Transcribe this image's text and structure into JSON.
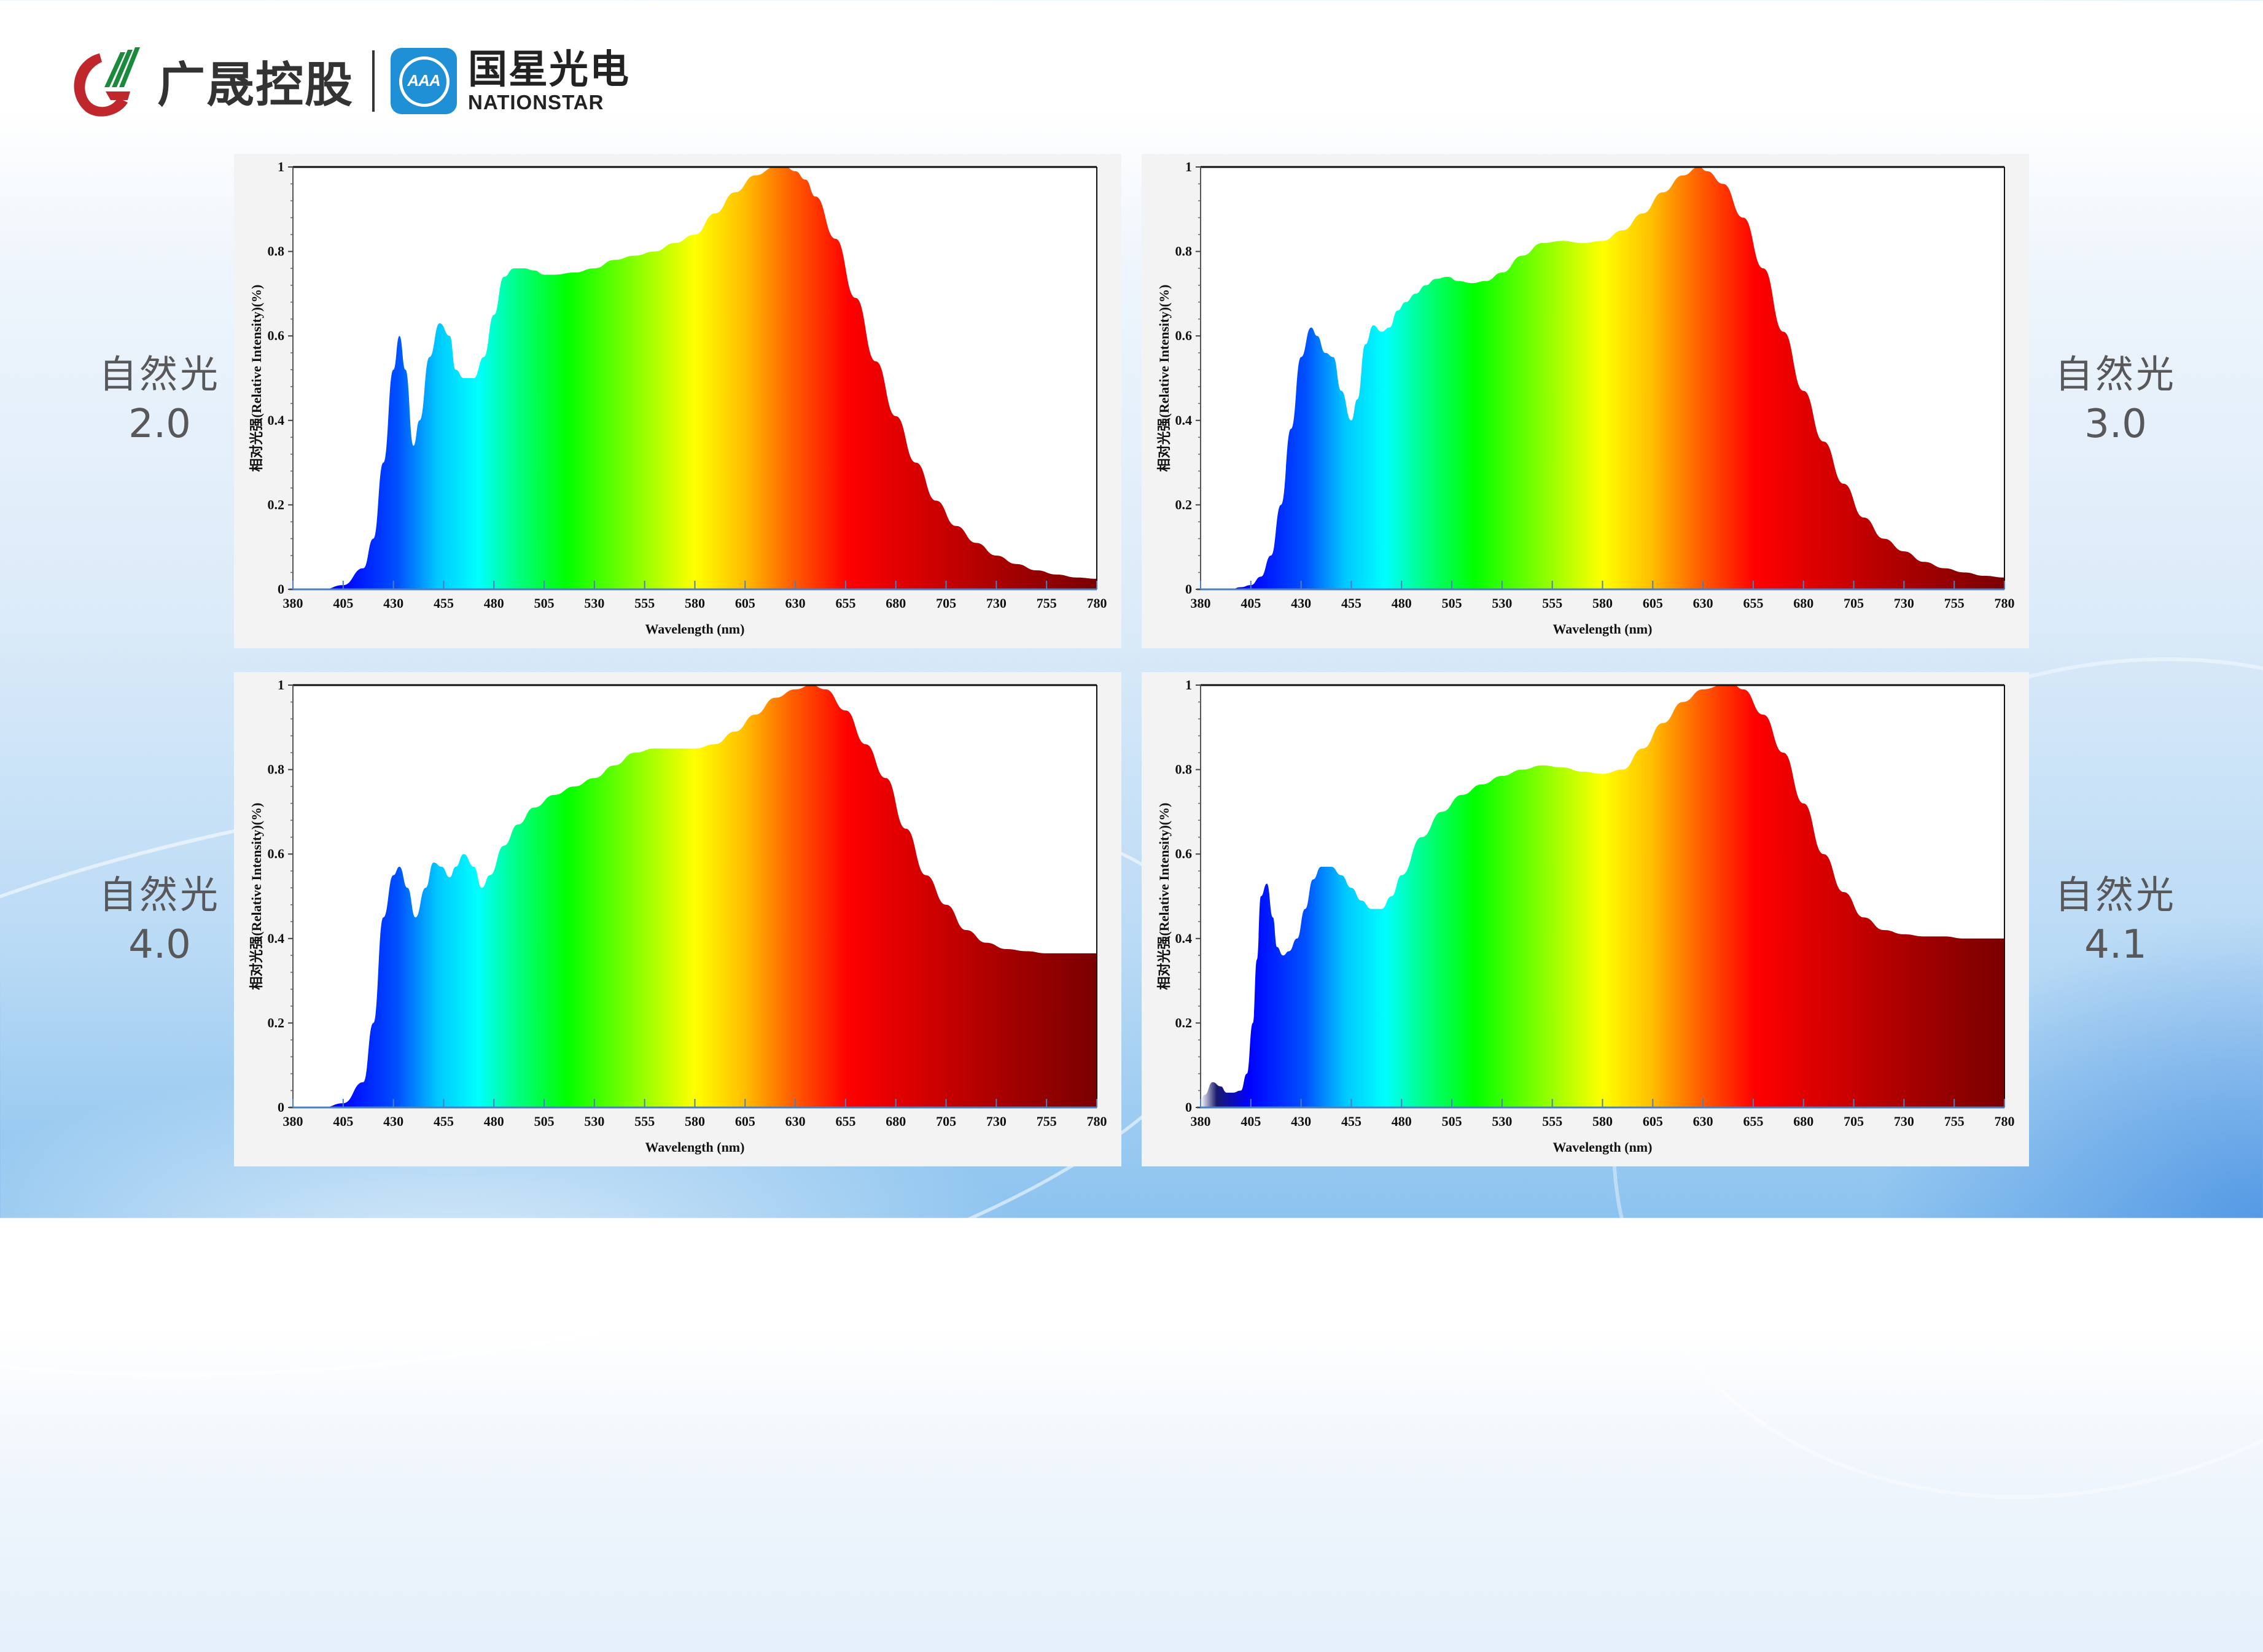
{
  "header": {
    "brand_left": "广晟控股",
    "brand_right_cn": "国星光电",
    "brand_right_en": "NATIONSTAR",
    "brand_right_icon_text": "AAA",
    "brand_right_color": "#1f8fd6"
  },
  "labels": [
    {
      "title": "自然光",
      "version": "2.0"
    },
    {
      "title": "自然光",
      "version": "3.0"
    },
    {
      "title": "自然光",
      "version": "4.0"
    },
    {
      "title": "自然光",
      "version": "4.1"
    }
  ],
  "axis": {
    "ylabel": "相对光强(Relative Intensity)(%)",
    "xlabel": "Wavelength (nm)",
    "yticks": [
      "0",
      "0.2",
      "0.4",
      "0.6",
      "0.8",
      "1"
    ],
    "xticks": [
      "380",
      "405",
      "430",
      "455",
      "480",
      "505",
      "530",
      "555",
      "580",
      "605",
      "630",
      "655",
      "680",
      "705",
      "730",
      "755",
      "780"
    ]
  },
  "chart_data": [
    {
      "type": "area",
      "title": "自然光 2.0",
      "xlabel": "Wavelength (nm)",
      "ylabel": "相对光强(Relative Intensity)(%)",
      "xlim": [
        380,
        780
      ],
      "ylim": [
        0,
        1
      ],
      "grid": false,
      "fill": "visible-spectrum gradient",
      "x": [
        380,
        395,
        405,
        415,
        420,
        425,
        430,
        433,
        436,
        440,
        443,
        448,
        453,
        458,
        461,
        465,
        470,
        475,
        480,
        485,
        490,
        495,
        500,
        505,
        510,
        520,
        530,
        540,
        550,
        560,
        570,
        580,
        590,
        600,
        610,
        620,
        625,
        630,
        635,
        640,
        650,
        660,
        670,
        680,
        690,
        700,
        710,
        720,
        730,
        740,
        750,
        760,
        770,
        780
      ],
      "values": [
        0.0,
        0.0,
        0.01,
        0.05,
        0.12,
        0.3,
        0.52,
        0.6,
        0.52,
        0.34,
        0.4,
        0.55,
        0.63,
        0.6,
        0.52,
        0.5,
        0.5,
        0.55,
        0.65,
        0.74,
        0.76,
        0.76,
        0.755,
        0.745,
        0.745,
        0.75,
        0.76,
        0.78,
        0.79,
        0.8,
        0.82,
        0.84,
        0.89,
        0.94,
        0.98,
        1.0,
        1.0,
        0.99,
        0.97,
        0.93,
        0.83,
        0.69,
        0.54,
        0.41,
        0.3,
        0.21,
        0.15,
        0.11,
        0.08,
        0.06,
        0.045,
        0.035,
        0.028,
        0.025
      ]
    },
    {
      "type": "area",
      "title": "自然光 3.0",
      "xlabel": "Wavelength (nm)",
      "ylabel": "相对光强(Relative Intensity)(%)",
      "xlim": [
        380,
        780
      ],
      "ylim": [
        0,
        1
      ],
      "grid": false,
      "fill": "visible-spectrum gradient",
      "x": [
        380,
        395,
        400,
        405,
        410,
        415,
        420,
        425,
        430,
        435,
        438,
        442,
        446,
        450,
        455,
        458,
        462,
        466,
        470,
        474,
        478,
        482,
        487,
        492,
        497,
        503,
        508,
        515,
        522,
        530,
        540,
        550,
        560,
        570,
        580,
        590,
        600,
        610,
        620,
        628,
        632,
        640,
        650,
        660,
        670,
        680,
        690,
        700,
        710,
        720,
        730,
        740,
        750,
        760,
        770,
        780
      ],
      "values": [
        0.0,
        0.0,
        0.005,
        0.01,
        0.03,
        0.08,
        0.2,
        0.38,
        0.55,
        0.62,
        0.6,
        0.56,
        0.55,
        0.47,
        0.4,
        0.45,
        0.58,
        0.625,
        0.61,
        0.62,
        0.66,
        0.68,
        0.7,
        0.72,
        0.735,
        0.74,
        0.73,
        0.725,
        0.73,
        0.75,
        0.79,
        0.82,
        0.825,
        0.82,
        0.825,
        0.85,
        0.89,
        0.94,
        0.98,
        1.0,
        0.99,
        0.96,
        0.88,
        0.76,
        0.61,
        0.47,
        0.35,
        0.25,
        0.17,
        0.12,
        0.09,
        0.065,
        0.05,
        0.04,
        0.032,
        0.028
      ]
    },
    {
      "type": "area",
      "title": "自然光 4.0",
      "xlabel": "Wavelength (nm)",
      "ylabel": "相对光强(Relative Intensity)(%)",
      "xlim": [
        380,
        780
      ],
      "ylim": [
        0,
        1
      ],
      "grid": false,
      "fill": "visible-spectrum gradient",
      "x": [
        380,
        395,
        405,
        415,
        420,
        425,
        430,
        433,
        437,
        441,
        446,
        450,
        454,
        458,
        461,
        465,
        470,
        474,
        478,
        485,
        492,
        500,
        510,
        520,
        530,
        540,
        550,
        560,
        570,
        580,
        590,
        600,
        610,
        620,
        630,
        638,
        645,
        655,
        665,
        675,
        685,
        695,
        705,
        715,
        725,
        735,
        745,
        755,
        765,
        780
      ],
      "values": [
        0.0,
        0.0,
        0.01,
        0.06,
        0.2,
        0.45,
        0.55,
        0.57,
        0.52,
        0.45,
        0.52,
        0.58,
        0.57,
        0.545,
        0.57,
        0.6,
        0.57,
        0.52,
        0.55,
        0.62,
        0.67,
        0.71,
        0.74,
        0.76,
        0.78,
        0.81,
        0.84,
        0.85,
        0.85,
        0.85,
        0.86,
        0.89,
        0.93,
        0.97,
        0.99,
        1.0,
        0.99,
        0.94,
        0.86,
        0.78,
        0.66,
        0.55,
        0.48,
        0.42,
        0.39,
        0.375,
        0.37,
        0.365,
        0.365,
        0.365
      ]
    },
    {
      "type": "area",
      "title": "自然光 4.1",
      "xlabel": "Wavelength (nm)",
      "ylabel": "相对光强(Relative Intensity)(%)",
      "xlim": [
        380,
        780
      ],
      "ylim": [
        0,
        1
      ],
      "grid": false,
      "fill": "visible-spectrum gradient",
      "x": [
        380,
        382,
        386,
        390,
        393,
        396,
        400,
        403,
        406,
        408,
        410,
        413,
        416,
        418,
        421,
        424,
        428,
        432,
        436,
        440,
        445,
        450,
        455,
        460,
        465,
        470,
        475,
        480,
        490,
        500,
        510,
        520,
        530,
        540,
        550,
        560,
        570,
        580,
        590,
        600,
        610,
        620,
        630,
        640,
        645,
        650,
        660,
        670,
        680,
        690,
        700,
        710,
        720,
        730,
        740,
        750,
        760,
        770,
        780
      ],
      "values": [
        0.02,
        0.03,
        0.06,
        0.05,
        0.035,
        0.035,
        0.04,
        0.08,
        0.2,
        0.35,
        0.5,
        0.53,
        0.45,
        0.38,
        0.36,
        0.37,
        0.4,
        0.47,
        0.54,
        0.57,
        0.57,
        0.55,
        0.52,
        0.49,
        0.47,
        0.47,
        0.5,
        0.55,
        0.64,
        0.7,
        0.74,
        0.765,
        0.785,
        0.8,
        0.81,
        0.805,
        0.795,
        0.79,
        0.8,
        0.85,
        0.91,
        0.96,
        0.99,
        1.0,
        1.0,
        0.99,
        0.93,
        0.84,
        0.72,
        0.6,
        0.51,
        0.45,
        0.42,
        0.41,
        0.405,
        0.405,
        0.4,
        0.4,
        0.4
      ]
    }
  ]
}
